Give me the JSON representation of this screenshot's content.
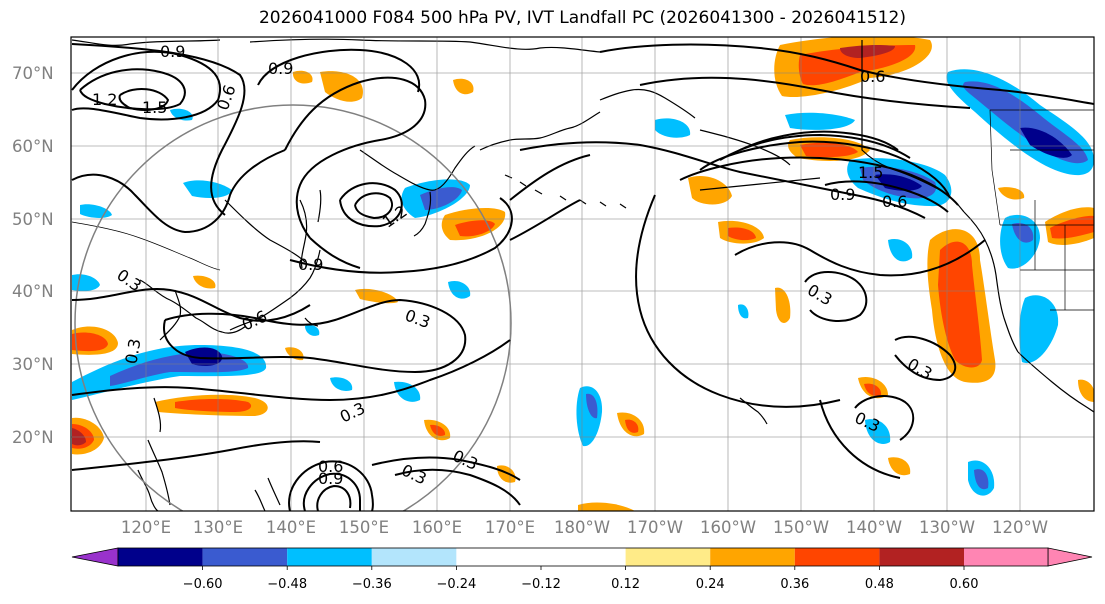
{
  "title": "2026041000 F084 500 hPa PV, IVT Landfall PC (2026041300 - 2026041512)",
  "lat_labels": [
    "70°N",
    "60°N",
    "50°N",
    "40°N",
    "30°N",
    "20°N"
  ],
  "lon_labels": [
    "120°E",
    "130°E",
    "140°E",
    "150°E",
    "160°E",
    "170°E",
    "180°W",
    "170°W",
    "160°W",
    "150°W",
    "140°W",
    "130°W",
    "120°W"
  ],
  "colorbar": {
    "ticks": [
      "−0.60",
      "−0.48",
      "−0.36",
      "−0.24",
      "−0.12",
      "0.12",
      "0.24",
      "0.36",
      "0.48",
      "0.60"
    ],
    "colors": [
      "#9932cc",
      "#00008b",
      "#3a5bd0",
      "#00bfff",
      "#b3e5fc",
      "#ffffff",
      "#ffeb88",
      "#ffa500",
      "#ff4500",
      "#b22222",
      "#ff85b3"
    ]
  },
  "contour_labels": [
    "0.9",
    "1.2",
    "1.5",
    "0.6",
    "0.9",
    "1.2",
    "0.9",
    "0.6",
    "0.3",
    "0.3",
    "0.3",
    "0.3",
    "0.6",
    "0.9",
    "0.3",
    "0.6",
    "1.5",
    "0.9",
    "0.6",
    "0.3",
    "0.3",
    "0.3",
    "0.3"
  ]
}
